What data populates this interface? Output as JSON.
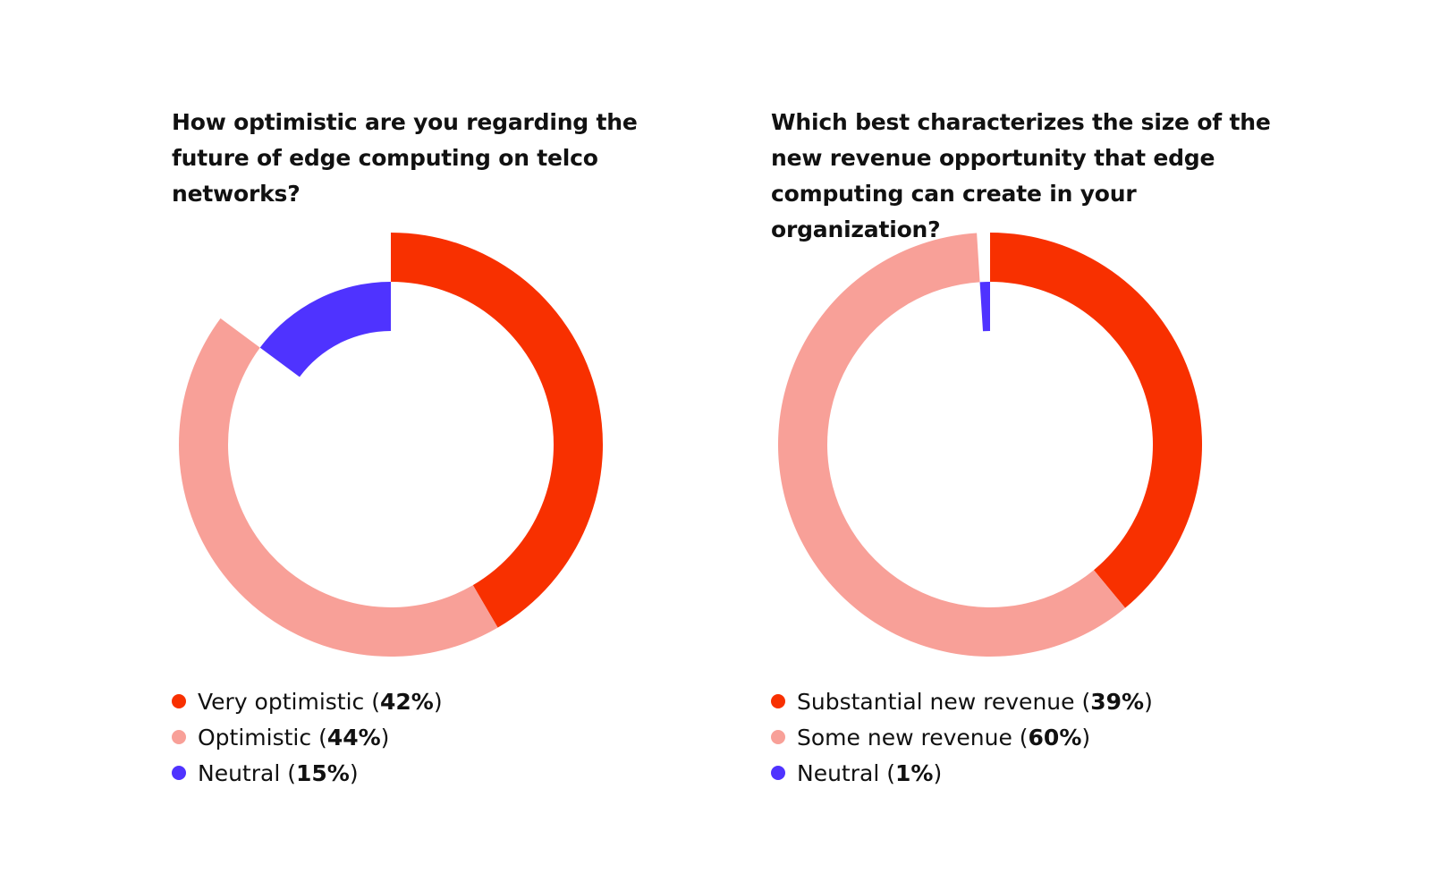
{
  "colors": {
    "very_optimistic": "#f83000",
    "optimistic": "#f8a098",
    "neutral": "#4f33ff"
  },
  "chart_data": [
    {
      "type": "pie",
      "title": "How optimistic are you regarding the future of edge computing on telco networks?",
      "slices": [
        {
          "label": "Very optimistic",
          "value": 42,
          "value_text": "42%",
          "color": "#f83000",
          "ring": "outer"
        },
        {
          "label": "Optimistic",
          "value": 44,
          "value_text": "44%",
          "color": "#f8a098",
          "ring": "outer"
        },
        {
          "label": "Neutral",
          "value": 15,
          "value_text": "15%",
          "color": "#4f33ff",
          "ring": "inner"
        }
      ],
      "legend_position": "bottom"
    },
    {
      "type": "pie",
      "title": "Which best characterizes the size of the new revenue opportunity that edge computing can create in your organization?",
      "slices": [
        {
          "label": "Substantial new revenue",
          "value": 39,
          "value_text": "39%",
          "color": "#f83000",
          "ring": "outer"
        },
        {
          "label": "Some new revenue",
          "value": 60,
          "value_text": "60%",
          "color": "#f8a098",
          "ring": "outer"
        },
        {
          "label": "Neutral",
          "value": 1,
          "value_text": "1%",
          "color": "#4f33ff",
          "ring": "inner"
        }
      ],
      "legend_position": "bottom"
    }
  ]
}
